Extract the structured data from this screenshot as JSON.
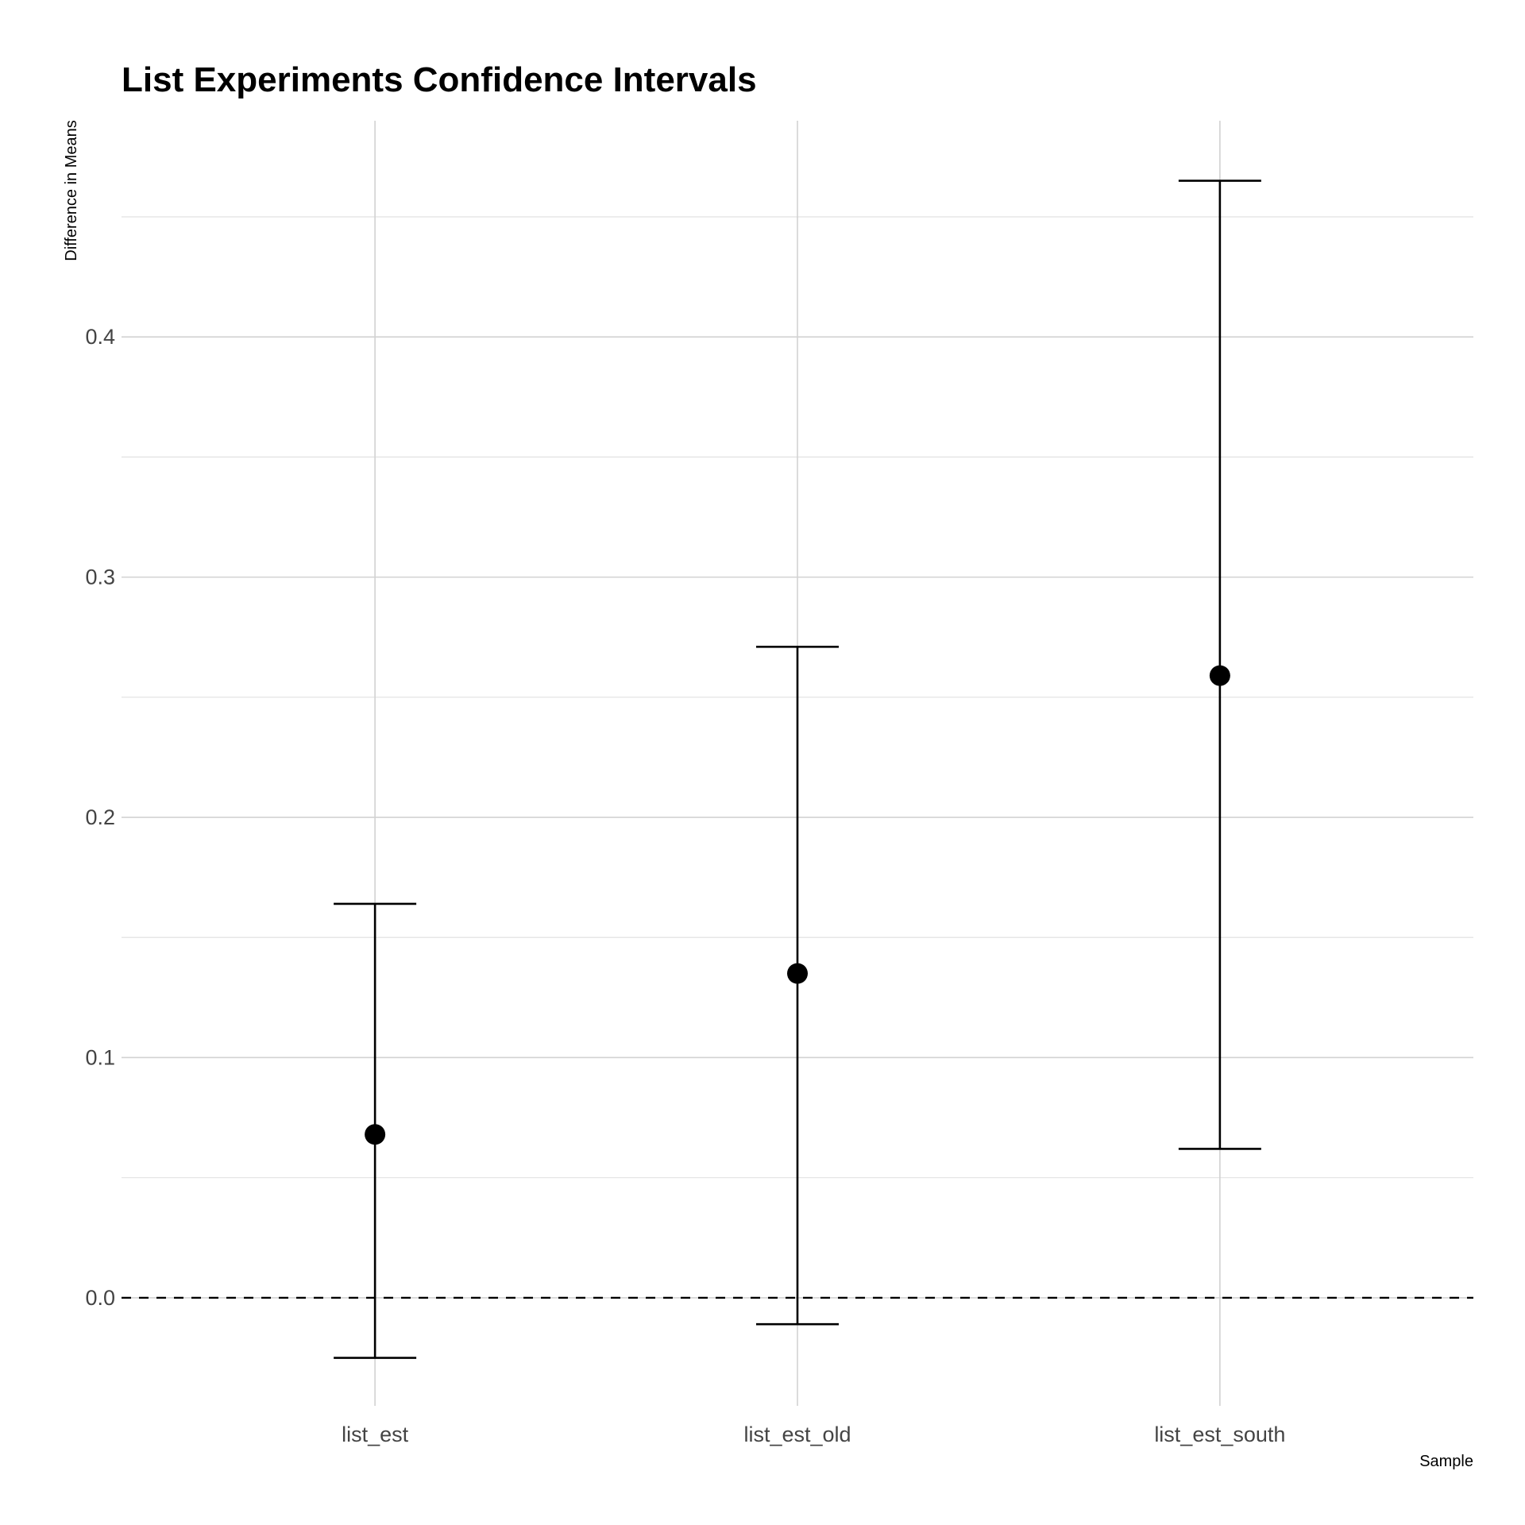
{
  "chart_data": {
    "type": "errorbar",
    "title": "List Experiments Confidence Intervals",
    "xlabel": "Sample",
    "ylabel": "Difference in Means",
    "categories": [
      "list_est",
      "list_est_old",
      "list_est_south"
    ],
    "estimate": [
      0.068,
      0.135,
      0.259
    ],
    "lower": [
      -0.025,
      -0.011,
      0.062
    ],
    "upper": [
      0.164,
      0.271,
      0.465
    ],
    "ylim": [
      -0.045,
      0.49
    ],
    "yticks": [
      0.0,
      0.1,
      0.2,
      0.3,
      0.4
    ],
    "ytick_labels": [
      "0.0",
      "0.1",
      "0.2",
      "0.3",
      "0.4"
    ],
    "reference_line": 0,
    "grid": true
  }
}
